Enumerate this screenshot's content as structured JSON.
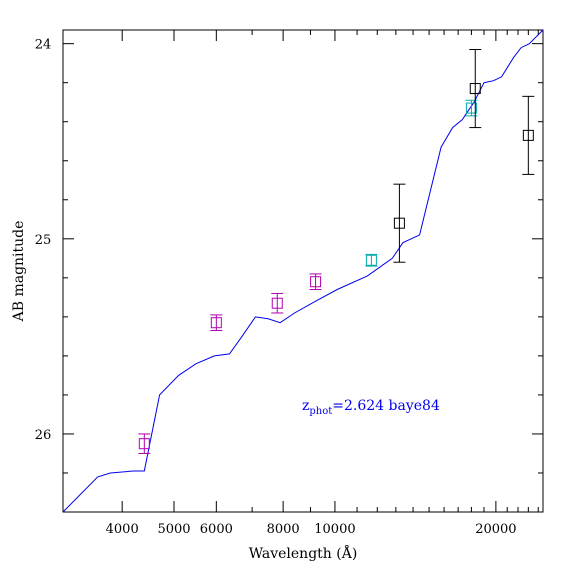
{
  "chart_data": {
    "type": "scatter",
    "xlabel": "Wavelength (Å)",
    "ylabel": "AB magnitude",
    "x_scale": "log",
    "xlim": [
      3100,
      24500
    ],
    "ylim": [
      26.4,
      23.93
    ],
    "y_inverted": true,
    "x_ticks": [
      {
        "value": 4000,
        "label": "4000"
      },
      {
        "value": 5000,
        "label": "5000"
      },
      {
        "value": 6000,
        "label": "6000"
      },
      {
        "value": 8000,
        "label": "8000"
      },
      {
        "value": 10000,
        "label": "10000"
      },
      {
        "value": 20000,
        "label": "20000"
      }
    ],
    "y_ticks": [
      {
        "value": 24,
        "label": "24"
      },
      {
        "value": 25,
        "label": "25"
      },
      {
        "value": 26,
        "label": "26"
      }
    ],
    "grid": false,
    "annotation": {
      "z_main": "z",
      "z_sub": "phot",
      "text": "=2.624 baye84"
    },
    "colors": {
      "model": "#0000ee",
      "magenta": "#b000b0",
      "cyan": "#00aaaa",
      "black": "#000000",
      "text_blue": "#0000ee"
    },
    "series": [
      {
        "kind": "line",
        "color": "#0000ee",
        "points": [
          [
            3100,
            26.4
          ],
          [
            3600,
            26.22
          ],
          [
            3800,
            26.2
          ],
          [
            4200,
            26.19
          ],
          [
            4400,
            26.19
          ],
          [
            4700,
            25.8
          ],
          [
            5100,
            25.7
          ],
          [
            5500,
            25.64
          ],
          [
            5950,
            25.6
          ],
          [
            6350,
            25.59
          ],
          [
            6700,
            25.5
          ],
          [
            7100,
            25.4
          ],
          [
            7500,
            25.41
          ],
          [
            7900,
            25.43
          ],
          [
            8400,
            25.38
          ],
          [
            9200,
            25.32
          ],
          [
            10100,
            25.26
          ],
          [
            11500,
            25.19
          ],
          [
            12800,
            25.1
          ],
          [
            13400,
            25.02
          ],
          [
            14400,
            24.98
          ],
          [
            15100,
            24.75
          ],
          [
            15800,
            24.53
          ],
          [
            16600,
            24.43
          ],
          [
            17300,
            24.39
          ],
          [
            18200,
            24.3
          ],
          [
            19000,
            24.2
          ],
          [
            19800,
            24.19
          ],
          [
            20500,
            24.17
          ],
          [
            21600,
            24.07
          ],
          [
            22300,
            24.02
          ],
          [
            23100,
            24.0
          ],
          [
            24500,
            23.93
          ]
        ]
      },
      {
        "kind": "points",
        "color": "#b000b0",
        "points": [
          {
            "x": 4400,
            "y": 26.05,
            "err": 0.05
          },
          {
            "x": 6000,
            "y": 25.43,
            "err": 0.04
          },
          {
            "x": 7800,
            "y": 25.33,
            "err": 0.05
          },
          {
            "x": 9200,
            "y": 25.22,
            "err": 0.04
          }
        ]
      },
      {
        "kind": "points",
        "color": "#00aaaa",
        "points": [
          {
            "x": 11700,
            "y": 25.11,
            "err": 0.03
          },
          {
            "x": 18000,
            "y": 24.33,
            "err": 0.04
          }
        ]
      },
      {
        "kind": "points",
        "color": "#000000",
        "points": [
          {
            "x": 13200,
            "y": 24.92,
            "err": 0.2
          },
          {
            "x": 18300,
            "y": 24.23,
            "err": 0.2
          },
          {
            "x": 23000,
            "y": 24.47,
            "err": 0.2
          }
        ]
      }
    ]
  }
}
